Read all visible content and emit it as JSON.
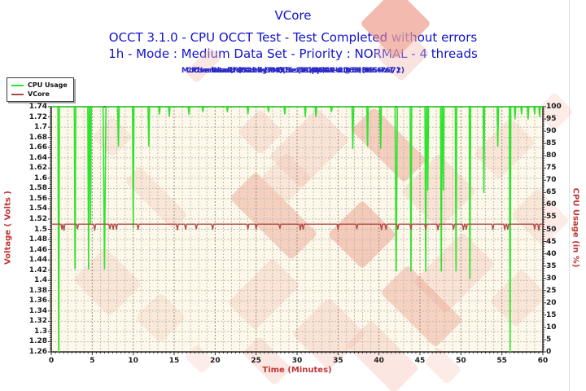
{
  "header": {
    "title": "VCore",
    "subtitle1": "OCCT 3.1.0 - CPU OCCT Test - Test Completed without errors",
    "subtitle2": "1h - Mode : Medium Data Set - Priority : NORMAL - 4 threads"
  },
  "info": {
    "line1": "Generated by OCCT : 11/08/11 20:50:09",
    "line2": "CPU : Intel(R) Core(TM) i5-2500K CPU @ 3.30GHz (  )",
    "line3": "Overclock : 5299.93 MHz | Ripple : 0.01 ( 0.66%)",
    "line4": "Motherboard Brand :MSI,Serie :Z68A-GD80 (MS-7672)"
  },
  "legend": {
    "items": [
      {
        "label": "CPU Usage",
        "color": "#2fe42f"
      },
      {
        "label": "VCore",
        "color": "#a84a46"
      }
    ]
  },
  "colors": {
    "title_blue": "#1212cf",
    "info_blue": "#2a2ac6",
    "axis_title_red": "#c23434",
    "plot_background": "#fdf8e9",
    "grid_minor": "#bcbcbc",
    "grid_major": "#8f8f8f",
    "frame": "#2b2b2b",
    "cpu_green": "#2fe42f",
    "vcore_red": "#b04a46",
    "watermark_strong": "#ea8a75",
    "watermark_light": "#f4bdb0"
  },
  "chart_data": {
    "type": "line",
    "title": "VCore",
    "grid": true,
    "legend_position": "top-left",
    "x_axis": {
      "label": "Time (Minutes)",
      "min": 0,
      "max": 60,
      "major_step": 5,
      "minor_step": 0.5,
      "tick_labels": [
        "0",
        "5",
        "10",
        "15",
        "20",
        "25",
        "30",
        "35",
        "40",
        "45",
        "50",
        "55",
        "60"
      ]
    },
    "y_left": {
      "label": "Voltage ( Volts )",
      "min": 1.26,
      "max": 1.74,
      "step": 0.02,
      "tick_labels": [
        "1.74",
        "1.72",
        "1.7",
        "1.68",
        "1.66",
        "1.64",
        "1.62",
        "1.6",
        "1.58",
        "1.56",
        "1.54",
        "1.52",
        "1.5",
        "1.48",
        "1.46",
        "1.44",
        "1.42",
        "1.4",
        "1.38",
        "1.36",
        "1.34",
        "1.32",
        "1.3",
        "1.28",
        "1.26"
      ]
    },
    "y_right": {
      "label": "CPU Usage (in %)",
      "min": 0,
      "max": 100,
      "step": 5,
      "tick_labels": [
        "100",
        "95",
        "90",
        "85",
        "80",
        "75",
        "70",
        "65",
        "60",
        "55",
        "50",
        "45",
        "40",
        "35",
        "30",
        "25",
        "20",
        "15",
        "10",
        "5",
        "0"
      ]
    },
    "series": [
      {
        "name": "CPU Usage",
        "axis": "right",
        "color": "#2fe42f",
        "baseline": 100,
        "spike_halfwidth": 0.09,
        "spikes": [
          [
            0.9,
            0
          ],
          [
            2.9,
            34
          ],
          [
            4.55,
            34
          ],
          [
            4.8,
            52
          ],
          [
            6.5,
            34,
            0.18
          ],
          [
            8.2,
            84
          ],
          [
            10.0,
            51
          ],
          [
            11.9,
            84
          ],
          [
            13.2,
            97
          ],
          [
            14.4,
            96
          ],
          [
            16.8,
            97
          ],
          [
            18.5,
            98
          ],
          [
            21.5,
            98
          ],
          [
            24.0,
            97
          ],
          [
            26.5,
            98
          ],
          [
            28.5,
            97
          ],
          [
            31.0,
            96
          ],
          [
            32.3,
            96
          ],
          [
            34.2,
            98
          ],
          [
            36.8,
            83
          ],
          [
            38.6,
            84
          ],
          [
            40.2,
            83
          ],
          [
            42.1,
            33,
            0.14
          ],
          [
            43.9,
            33
          ],
          [
            45.7,
            33
          ],
          [
            45.95,
            66
          ],
          [
            47.6,
            33
          ],
          [
            47.85,
            66
          ],
          [
            49.4,
            33
          ],
          [
            51.1,
            30
          ],
          [
            52.8,
            65
          ],
          [
            54.5,
            84
          ],
          [
            56.0,
            0
          ],
          [
            56.6,
            95
          ],
          [
            57.4,
            97
          ],
          [
            58.2,
            95
          ],
          [
            59.0,
            97
          ],
          [
            59.6,
            96
          ]
        ]
      },
      {
        "name": "VCore",
        "axis": "left",
        "color": "#b04a46",
        "baseline": 1.51,
        "spike_halfwidth": 0.12,
        "spikes": [
          [
            1.3,
            1.5
          ],
          [
            1.55,
            1.498
          ],
          [
            3.2,
            1.501
          ],
          [
            5.3,
            1.498
          ],
          [
            7.15,
            1.501
          ],
          [
            7.55,
            1.5
          ],
          [
            7.95,
            1.5
          ],
          [
            10.6,
            1.5
          ],
          [
            15.4,
            1.499
          ],
          [
            16.4,
            1.5
          ],
          [
            17.7,
            1.501
          ],
          [
            19.7,
            1.5
          ],
          [
            24.0,
            1.5
          ],
          [
            25.0,
            1.5
          ],
          [
            27.9,
            1.502
          ],
          [
            30.4,
            1.499
          ],
          [
            30.75,
            1.5
          ],
          [
            35.0,
            1.5
          ],
          [
            37.3,
            1.501
          ],
          [
            40.3,
            1.499
          ],
          [
            40.85,
            1.5
          ],
          [
            42.3,
            1.5
          ],
          [
            43.9,
            1.5
          ],
          [
            45.7,
            1.5
          ],
          [
            47.2,
            1.499
          ],
          [
            49.1,
            1.5
          ],
          [
            50.3,
            1.499
          ],
          [
            50.65,
            1.5
          ],
          [
            53.9,
            1.5
          ],
          [
            55.35,
            1.499
          ],
          [
            55.7,
            1.5
          ],
          [
            59.0,
            1.5
          ],
          [
            59.5,
            1.498
          ]
        ]
      }
    ]
  }
}
